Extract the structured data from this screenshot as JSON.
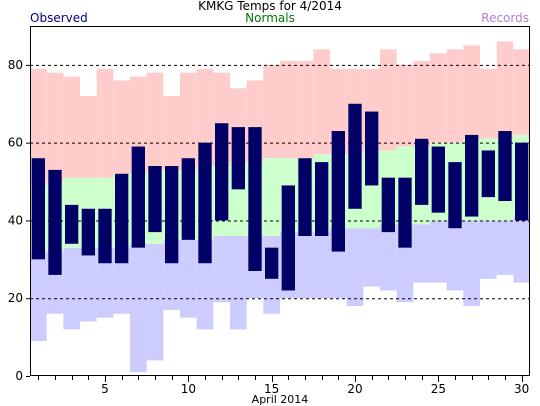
{
  "title": "KMKG Temps for 4/2014",
  "legend": {
    "observed": "Observed",
    "normals": "Normals",
    "records": "Records"
  },
  "colors": {
    "observed": "#000066",
    "normals": "#ccffcc",
    "record_high": "#ffcccc",
    "record_low": "#ccccff",
    "legend_observed": "#000080",
    "legend_normals": "#007700",
    "legend_records": "#b07fd6",
    "grid": "#000000"
  },
  "chart_data": {
    "type": "bar",
    "title": "KMKG Temps for 4/2014",
    "xlabel": "April 2014",
    "ylabel": "",
    "ylim": [
      0,
      90
    ],
    "yticks": [
      0,
      20,
      40,
      60,
      80
    ],
    "xlim": [
      0.5,
      30.5
    ],
    "xticks": [
      5,
      10,
      15,
      20,
      25,
      30
    ],
    "grid": "dashed horizontal at 20, 40, 60, 80",
    "days": [
      1,
      2,
      3,
      4,
      5,
      6,
      7,
      8,
      9,
      10,
      11,
      12,
      13,
      14,
      15,
      16,
      17,
      18,
      19,
      20,
      21,
      22,
      23,
      24,
      25,
      26,
      27,
      28,
      29,
      30
    ],
    "series": [
      {
        "name": "Records",
        "kind": "record_high",
        "values": [
          79,
          78,
          77,
          72,
          79,
          76,
          77,
          78,
          72,
          78,
          79,
          78,
          74,
          76,
          80,
          81,
          81,
          84,
          79,
          79,
          79,
          84,
          80,
          81,
          83,
          84,
          85,
          79,
          86,
          84
        ]
      },
      {
        "name": "Records",
        "kind": "record_low",
        "values": [
          9,
          16,
          12,
          14,
          15,
          16,
          1,
          4,
          17,
          15,
          12,
          19,
          12,
          20,
          16,
          20,
          20,
          20,
          20,
          18,
          23,
          22,
          19,
          24,
          24,
          22,
          18,
          25,
          26,
          24
        ]
      },
      {
        "name": "Normals",
        "kind": "normal_high",
        "values": [
          49,
          50,
          51,
          51,
          51,
          52,
          52,
          53,
          53,
          53,
          54,
          54,
          55,
          55,
          56,
          56,
          56,
          57,
          57,
          57,
          58,
          58,
          59,
          59,
          60,
          60,
          61,
          61,
          61,
          62
        ]
      },
      {
        "name": "Normals",
        "kind": "normal_low",
        "values": [
          32,
          32,
          33,
          33,
          33,
          33,
          34,
          34,
          35,
          35,
          35,
          36,
          36,
          36,
          36,
          37,
          37,
          37,
          38,
          38,
          38,
          39,
          39,
          39,
          40,
          40,
          40,
          40,
          40,
          41
        ]
      },
      {
        "name": "Observed",
        "kind": "observed_high",
        "values": [
          56,
          53,
          44,
          43,
          43,
          52,
          59,
          54,
          54,
          56,
          60,
          65,
          64,
          64,
          33,
          49,
          56,
          55,
          63,
          70,
          68,
          51,
          51,
          61,
          59,
          55,
          62,
          58,
          63,
          60
        ]
      },
      {
        "name": "Observed",
        "kind": "observed_low",
        "values": [
          30,
          26,
          34,
          31,
          29,
          29,
          33,
          37,
          29,
          35,
          29,
          40,
          48,
          27,
          25,
          22,
          36,
          36,
          32,
          43,
          49,
          37,
          33,
          44,
          42,
          38,
          41,
          46,
          45,
          40
        ]
      }
    ]
  }
}
